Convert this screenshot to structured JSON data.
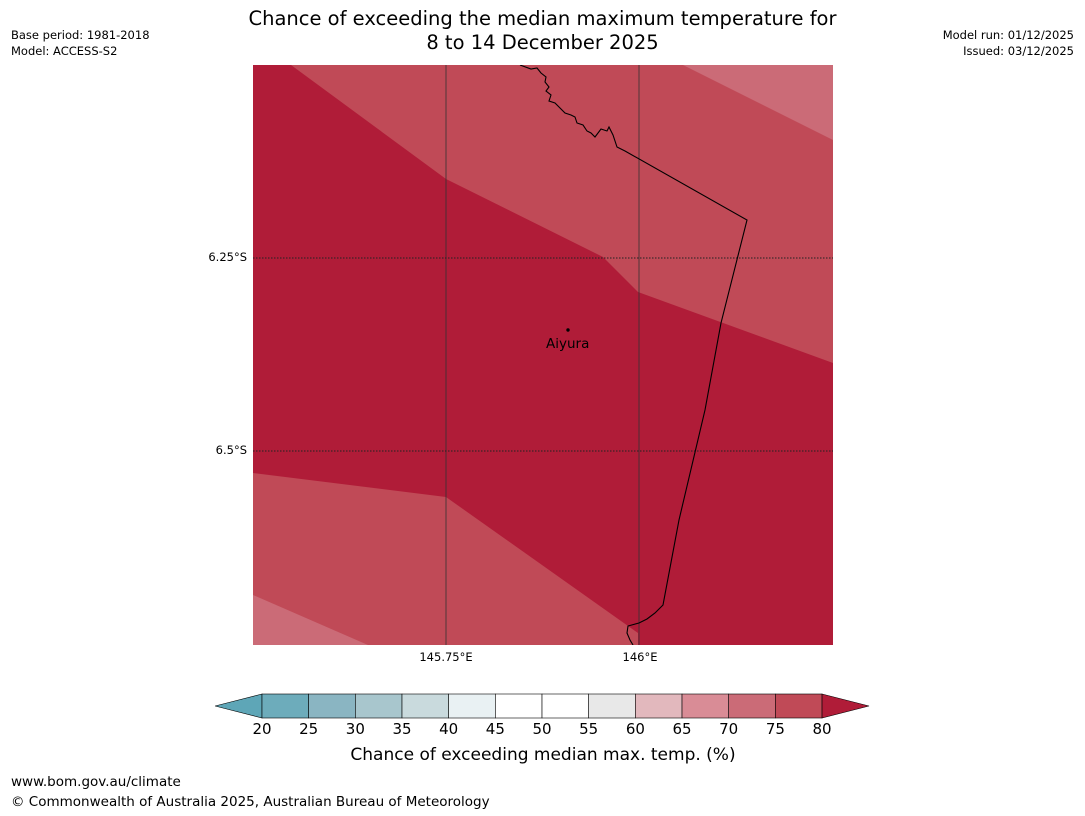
{
  "header": {
    "title_line1": "Chance of exceeding the median maximum temperature for",
    "title_line2": "8 to 14 December 2025",
    "base_period": "Base period: 1981-2018",
    "model": "Model: ACCESS-S2",
    "model_run": "Model run: 01/12/2025",
    "issued": "Issued: 03/12/2025"
  },
  "map": {
    "lat_labels": [
      "6.25°S",
      "6.5°S"
    ],
    "lon_labels": [
      "145.75°E",
      "146°E"
    ],
    "place": {
      "name": "Aiyura",
      "marker": "dot-icon"
    },
    "colors": {
      "band_80_plus": "#b01c38",
      "band_75_80": "#c04a57",
      "band_70_75": "#cb6b77",
      "border": "#000000"
    }
  },
  "colorbar": {
    "ticks": [
      "20",
      "25",
      "30",
      "35",
      "40",
      "45",
      "50",
      "55",
      "60",
      "65",
      "70",
      "75",
      "80"
    ],
    "colors": [
      "#5ea6b7",
      "#6dacbb",
      "#8ab5c2",
      "#a8c6cd",
      "#c9dadd",
      "#e9f1f3",
      "#ffffff",
      "#ffffff",
      "#e8e8e8",
      "#e2b8bd",
      "#d98c96",
      "#cb6b77",
      "#c04a57",
      "#b01c38"
    ],
    "label": "Chance of exceeding median max. temp. (%)"
  },
  "footer": {
    "url": "www.bom.gov.au/climate",
    "copyright": "© Commonwealth of Australia 2025, Australian Bureau of Meteorology"
  }
}
